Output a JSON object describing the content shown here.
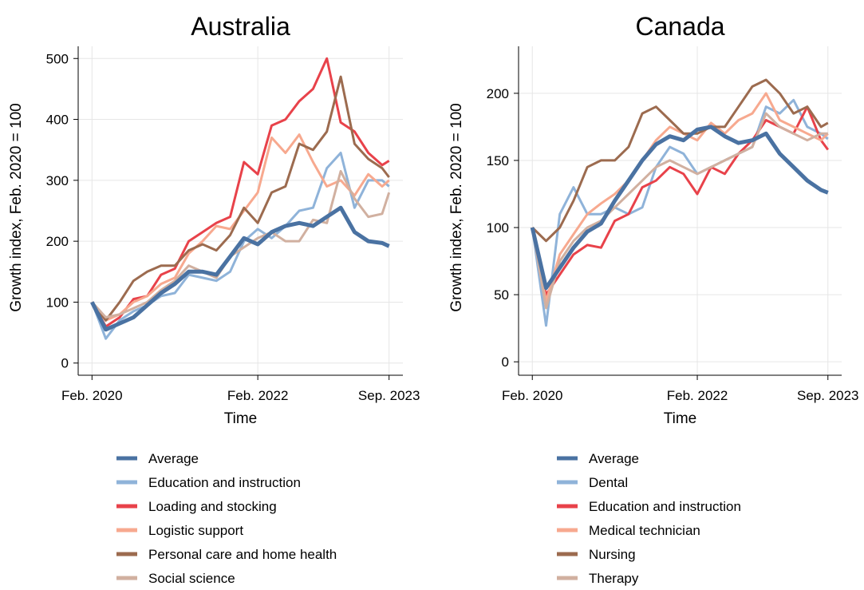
{
  "chart_data": [
    {
      "type": "line",
      "title": "Australia",
      "x_label": "Time",
      "y_label": "Growth index, Feb. 2020 = 100",
      "x": [
        0,
        2,
        4,
        6,
        8,
        10,
        12,
        14,
        16,
        18,
        20,
        22,
        24,
        26,
        28,
        30,
        32,
        34,
        36,
        38,
        40,
        42,
        43
      ],
      "xlim": [
        -2,
        45
      ],
      "xticks": [
        {
          "value": 0,
          "label": "Feb. 2020"
        },
        {
          "value": 24,
          "label": "Feb. 2022"
        },
        {
          "value": 43,
          "label": "Sep. 2023"
        }
      ],
      "ylim": [
        -20,
        520
      ],
      "yticks": [
        0,
        100,
        200,
        300,
        400,
        500
      ],
      "grid": true,
      "series": [
        {
          "name": "Average",
          "color": "#4a72a2",
          "values": [
            100,
            55,
            65,
            75,
            95,
            115,
            130,
            150,
            150,
            145,
            175,
            205,
            195,
            215,
            225,
            230,
            225,
            240,
            255,
            215,
            200,
            197,
            192
          ]
        },
        {
          "name": "Education and instruction",
          "color": "#8fb3d9",
          "values": [
            100,
            40,
            70,
            85,
            95,
            110,
            115,
            145,
            140,
            135,
            150,
            200,
            220,
            205,
            225,
            250,
            255,
            320,
            345,
            255,
            300,
            300,
            290
          ]
        },
        {
          "name": "Loading and stocking",
          "color": "#e8424a",
          "values": [
            100,
            60,
            75,
            105,
            110,
            145,
            155,
            200,
            215,
            230,
            240,
            330,
            310,
            390,
            400,
            430,
            450,
            500,
            395,
            380,
            345,
            325,
            332
          ]
        },
        {
          "name": "Logistic support",
          "color": "#f7a98f",
          "values": [
            100,
            70,
            80,
            100,
            110,
            130,
            140,
            180,
            200,
            225,
            220,
            250,
            280,
            370,
            345,
            375,
            330,
            290,
            300,
            275,
            310,
            290,
            300
          ]
        },
        {
          "name": "Personal care and home health",
          "color": "#9c6b4f",
          "values": [
            100,
            70,
            100,
            135,
            150,
            160,
            160,
            185,
            195,
            185,
            210,
            255,
            230,
            280,
            290,
            360,
            350,
            380,
            470,
            360,
            335,
            320,
            305
          ]
        },
        {
          "name": "Social science",
          "color": "#d1b0a0",
          "values": [
            100,
            75,
            80,
            90,
            100,
            120,
            135,
            160,
            150,
            140,
            175,
            190,
            205,
            215,
            200,
            200,
            235,
            230,
            315,
            270,
            240,
            245,
            280
          ]
        }
      ]
    },
    {
      "type": "line",
      "title": "Canada",
      "x_label": "Time",
      "y_label": "Growth index, Feb. 2020 = 100",
      "x": [
        0,
        2,
        4,
        6,
        8,
        10,
        12,
        14,
        16,
        18,
        20,
        22,
        24,
        26,
        28,
        30,
        32,
        34,
        36,
        38,
        40,
        42,
        43
      ],
      "xlim": [
        -2,
        45
      ],
      "xticks": [
        {
          "value": 0,
          "label": "Feb. 2020"
        },
        {
          "value": 24,
          "label": "Feb. 2022"
        },
        {
          "value": 43,
          "label": "Sep. 2023"
        }
      ],
      "ylim": [
        -10,
        235
      ],
      "yticks": [
        0,
        50,
        100,
        150,
        200
      ],
      "grid": true,
      "series": [
        {
          "name": "Average",
          "color": "#4a72a2",
          "values": [
            100,
            55,
            70,
            85,
            97,
            103,
            120,
            135,
            150,
            162,
            168,
            165,
            173,
            175,
            168,
            163,
            165,
            170,
            155,
            145,
            135,
            128,
            126
          ]
        },
        {
          "name": "Dental",
          "color": "#8fb3d9",
          "values": [
            100,
            27,
            110,
            130,
            110,
            110,
            115,
            110,
            115,
            145,
            160,
            155,
            140,
            145,
            150,
            155,
            160,
            190,
            185,
            195,
            175,
            170,
            166
          ]
        },
        {
          "name": "Education and instruction",
          "color": "#e8424a",
          "values": [
            100,
            50,
            65,
            80,
            87,
            85,
            105,
            110,
            130,
            135,
            145,
            140,
            125,
            145,
            140,
            155,
            165,
            180,
            175,
            170,
            190,
            165,
            158
          ]
        },
        {
          "name": "Medical technician",
          "color": "#f7a98f",
          "values": [
            100,
            45,
            80,
            95,
            110,
            118,
            125,
            135,
            150,
            165,
            175,
            170,
            165,
            178,
            170,
            180,
            185,
            200,
            180,
            175,
            170,
            165,
            170
          ]
        },
        {
          "name": "Nursing",
          "color": "#9c6b4f",
          "values": [
            100,
            90,
            100,
            120,
            145,
            150,
            150,
            160,
            185,
            190,
            180,
            170,
            170,
            175,
            175,
            190,
            205,
            210,
            200,
            185,
            190,
            175,
            178
          ]
        },
        {
          "name": "Therapy",
          "color": "#d1b0a0",
          "values": [
            100,
            40,
            75,
            90,
            100,
            105,
            115,
            125,
            135,
            145,
            150,
            145,
            140,
            145,
            150,
            155,
            160,
            185,
            175,
            170,
            165,
            170,
            170
          ]
        }
      ]
    }
  ]
}
